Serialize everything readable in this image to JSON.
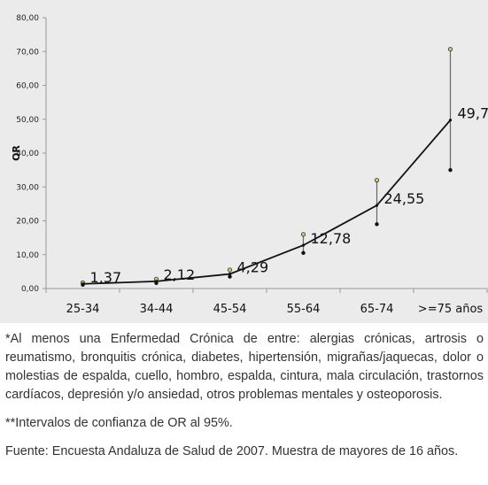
{
  "chart_data": {
    "type": "line",
    "title": "",
    "xlabel": "",
    "ylabel": "OR",
    "ylim": [
      0,
      80
    ],
    "yticks": [
      "0,00",
      "10,00",
      "20,00",
      "30,00",
      "40,00",
      "50,00",
      "60,00",
      "70,00",
      "80,00"
    ],
    "categories": [
      "25-34",
      "34-44",
      "45-54",
      "55-64",
      "65-74",
      ">=75 años"
    ],
    "series": [
      {
        "values": [
          1.37,
          2.12,
          4.29,
          12.78,
          24.55,
          49.76
        ],
        "labels": [
          "1,37",
          "2,12",
          "4,29",
          "12,78",
          "24,55",
          "49,76"
        ]
      }
    ],
    "confidence_intervals": [
      {
        "lower": 1.1,
        "upper": 1.7
      },
      {
        "lower": 1.6,
        "upper": 2.8
      },
      {
        "lower": 3.5,
        "upper": 5.5
      },
      {
        "lower": 10.5,
        "upper": 16.0
      },
      {
        "lower": 19.0,
        "upper": 32.0
      },
      {
        "lower": 35.0,
        "upper": 70.7
      }
    ],
    "grid": false,
    "colors": {
      "line": "#111111",
      "panel_background": "#ebebeb",
      "axis": "#999999"
    }
  },
  "notes": {
    "footnote_1": "*Al menos una Enfermedad Crónica de entre: alergias crónicas, artrosis o reumatismo, bronquitis crónica, diabetes, hipertensión, migrañas/jaquecas, dolor o molestias de espalda, cuello, hombro, espalda, cintura, mala circulación, trastornos cardíacos, depresión y/o ansiedad, otros problemas mentales y osteoporosis.",
    "footnote_2": "**Intervalos de confianza de OR al 95%.",
    "source": "Fuente: Encuesta Andaluza de Salud de 2007. Muestra de mayores de 16 años."
  }
}
